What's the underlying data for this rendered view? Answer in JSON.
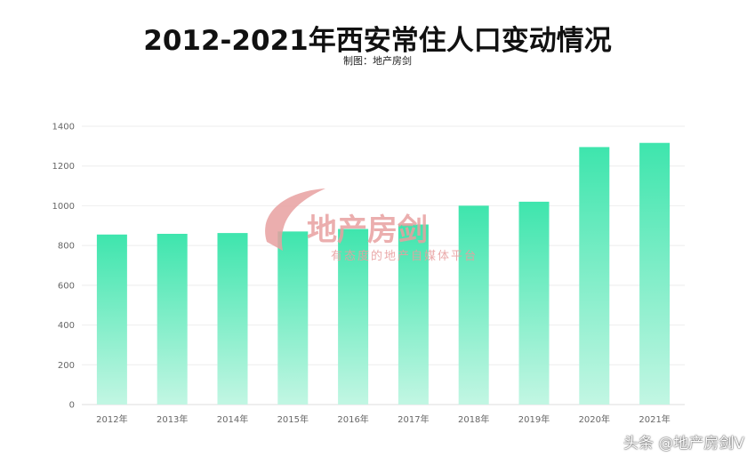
{
  "chart_data": {
    "type": "bar",
    "title": "2012-2021年西安常住人口变动情况",
    "subtitle": "制图：地产房剑",
    "categories": [
      "2012年",
      "2013年",
      "2014年",
      "2015年",
      "2016年",
      "2017年",
      "2018年",
      "2019年",
      "2020年",
      "2021年"
    ],
    "values": [
      855.3,
      858.8,
      862.8,
      870.6,
      883.2,
      905.7,
      1000.4,
      1020.4,
      1295.3,
      1316.3
    ],
    "ylim": [
      0,
      1400
    ],
    "yticks": [
      0,
      200,
      400,
      600,
      800,
      1000,
      1200,
      1400
    ],
    "grid": true,
    "bar_color_top": "#3ee5ad",
    "bar_color_bottom": "#c2f6e3"
  },
  "watermark": {
    "main": "地产房剑",
    "sub": "有态度的地产自媒体平台",
    "color": "#e8a0a0"
  },
  "credit": "头条 @地产房剑V"
}
